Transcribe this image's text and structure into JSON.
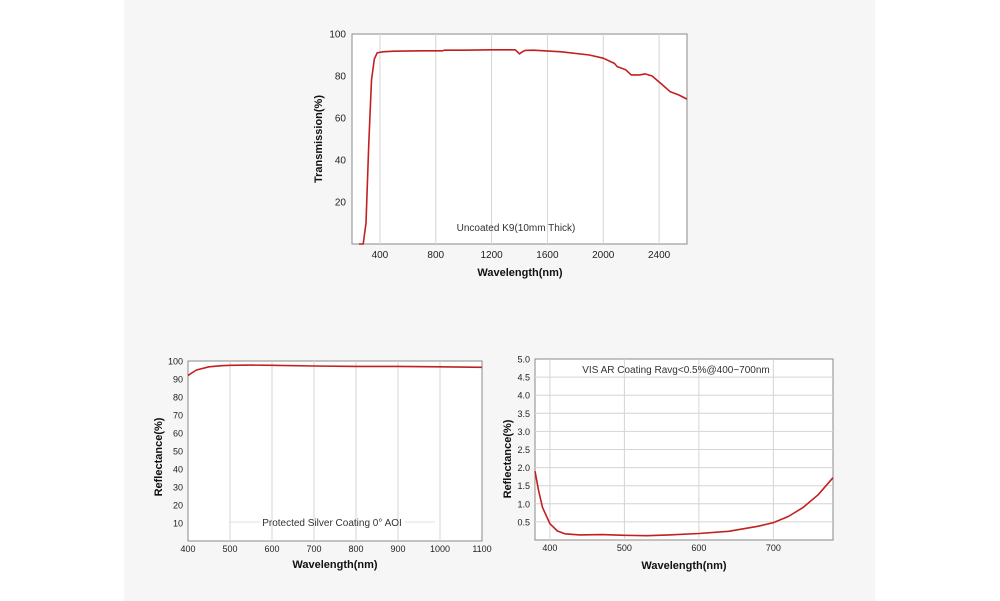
{
  "colors": {
    "curve": "#c41f1f",
    "frame": "#8a8a8a",
    "grid": "#d4d4d4",
    "background": "#f6f6f6"
  },
  "chart_data": [
    {
      "type": "line",
      "title": "",
      "annotation": "Uncoated K9(10mm Thick)",
      "xlabel": "Wavelength(nm)",
      "ylabel": "Transmission(%)",
      "xlim": [
        200,
        2600
      ],
      "ylim": [
        0,
        100
      ],
      "xticks": [
        400,
        800,
        1200,
        1600,
        2000,
        2400
      ],
      "yticks": [
        20,
        40,
        60,
        80,
        100
      ],
      "grid": "vertical",
      "series": [
        {
          "x": [
            250,
            280,
            300,
            320,
            340,
            360,
            380,
            420,
            500,
            700,
            850,
            860,
            1000,
            1200,
            1370,
            1385,
            1400,
            1420,
            1440,
            1500,
            1700,
            1900,
            2000,
            2080,
            2100,
            2120,
            2160,
            2200,
            2260,
            2300,
            2350,
            2420,
            2480,
            2540,
            2600
          ],
          "y": [
            0,
            0,
            10,
            48,
            78,
            88,
            91,
            91.5,
            91.8,
            92,
            92,
            92.3,
            92.3,
            92.5,
            92.5,
            91.5,
            90.5,
            91.5,
            92.2,
            92.3,
            91.5,
            90,
            88.5,
            86,
            84.5,
            84,
            83,
            80.5,
            80.5,
            81,
            80,
            76,
            72.5,
            71,
            69
          ]
        }
      ]
    },
    {
      "type": "line",
      "title": "",
      "annotation": "Protected Silver Coating  0°  AOI",
      "xlabel": "Wavelength(nm)",
      "ylabel": "Reflectance(%)",
      "xlim": [
        400,
        1100
      ],
      "ylim": [
        0,
        100
      ],
      "xticks": [
        400,
        500,
        600,
        700,
        800,
        900,
        1000,
        1100
      ],
      "yticks": [
        10,
        20,
        30,
        40,
        50,
        60,
        70,
        80,
        90,
        100
      ],
      "grid": "vertical",
      "series": [
        {
          "x": [
            400,
            420,
            450,
            480,
            500,
            550,
            600,
            700,
            800,
            900,
            1000,
            1050,
            1100
          ],
          "y": [
            92,
            95,
            96.8,
            97.4,
            97.6,
            97.7,
            97.6,
            97.2,
            97,
            97,
            96.8,
            96.6,
            96.5
          ]
        }
      ]
    },
    {
      "type": "line",
      "title": "",
      "annotation": "VIS AR Coating Ravg<0.5%@400~700nm",
      "xlabel": "Wavelength(nm)",
      "ylabel": "Reflectance(%)",
      "xlim": [
        380,
        780
      ],
      "ylim": [
        0,
        5.0
      ],
      "xticks": [
        400,
        500,
        600,
        700
      ],
      "yticks": [
        "0.5",
        "1.0",
        "1.5",
        "2.0",
        "2.5",
        "3.0",
        "3.5",
        "4.0",
        "4.5",
        "5.0"
      ],
      "grid": "both",
      "series": [
        {
          "x": [
            380,
            385,
            390,
            400,
            410,
            420,
            440,
            470,
            500,
            530,
            560,
            600,
            640,
            680,
            700,
            720,
            740,
            760,
            780
          ],
          "y": [
            1.9,
            1.35,
            0.9,
            0.45,
            0.25,
            0.17,
            0.14,
            0.15,
            0.13,
            0.12,
            0.14,
            0.18,
            0.24,
            0.38,
            0.48,
            0.65,
            0.9,
            1.25,
            1.72
          ]
        }
      ]
    }
  ]
}
